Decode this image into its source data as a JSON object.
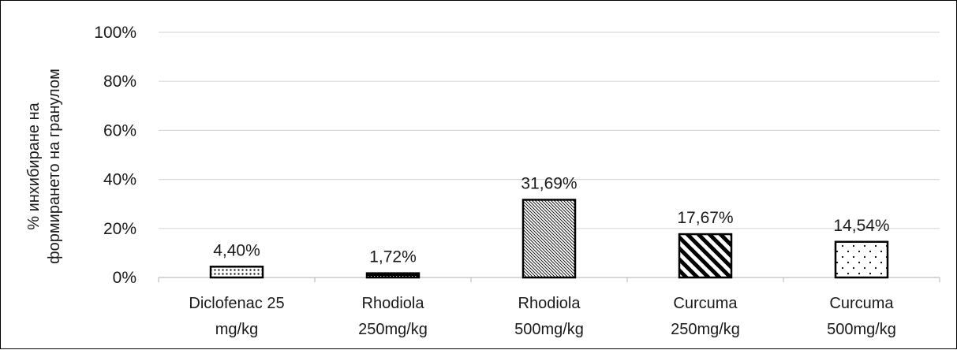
{
  "chart_data": {
    "type": "bar",
    "title": "",
    "xlabel": "",
    "ylabel": [
      "% инхибиране на",
      "формирането на гранулом"
    ],
    "categories": [
      [
        "Diclofenac 25",
        "mg/kg"
      ],
      [
        "Rhodiola",
        "250mg/kg"
      ],
      [
        "Rhodiola",
        "500mg/kg"
      ],
      [
        "Curcuma",
        "250mg/kg"
      ],
      [
        "Curcuma",
        "500mg/kg"
      ]
    ],
    "values": [
      4.4,
      1.72,
      31.69,
      17.67,
      14.54
    ],
    "data_labels": [
      "4,40%",
      "1,72%",
      "31,69%",
      "17,67%",
      "14,54%"
    ],
    "patterns": [
      "small-dots-dense",
      "dense-dark-dots",
      "fine-diagonal-lines",
      "wide-diagonal-stripes",
      "sparse-dots"
    ],
    "ylim": [
      0,
      100
    ],
    "yticks": [
      0,
      20,
      40,
      60,
      80,
      100
    ],
    "ytick_labels": [
      "0%",
      "20%",
      "40%",
      "60%",
      "80%",
      "100%"
    ],
    "grid": true,
    "legend": "none",
    "colors": {
      "bar_edge": "#000000",
      "grid": "#d9d9d9",
      "axis": "#bfbfbf",
      "text": "#1a1a1a"
    }
  }
}
